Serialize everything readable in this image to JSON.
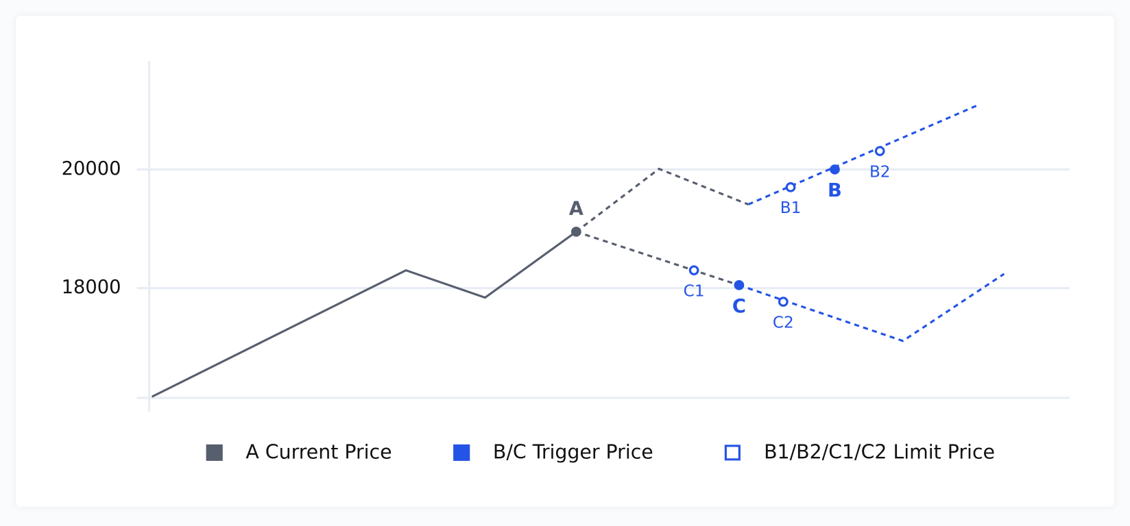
{
  "chart_data": {
    "type": "line",
    "xlim": [
      0,
      100
    ],
    "ylim": [
      16150,
      21830
    ],
    "yticks": [
      18000,
      20000
    ],
    "grid": true,
    "lines": [
      {
        "color": "#575e6e",
        "dashed": false,
        "x": [
          0.3,
          27.9,
          36.5,
          46.4
        ],
        "y": [
          16170,
          18300,
          17840,
          18950
        ]
      },
      {
        "color": "#575e6e",
        "dashed": true,
        "x": [
          46.4,
          55.4,
          65.1
        ],
        "y": [
          18950,
          20010,
          19410
        ]
      },
      {
        "color": "#2454e6",
        "dashed": true,
        "x": [
          65.1,
          90.3
        ],
        "y": [
          19410,
          21100
        ]
      },
      {
        "color": "#575e6e",
        "dashed": true,
        "x": [
          46.4,
          64.1
        ],
        "y": [
          18950,
          18050
        ]
      },
      {
        "color": "#2454e6",
        "dashed": true,
        "x": [
          64.1,
          81.9,
          92.9
        ],
        "y": [
          18050,
          17110,
          18240
        ]
      }
    ],
    "markers": [
      {
        "name": "A Current Price",
        "color": "#575e6e",
        "filled": true,
        "points": [
          {
            "label": "A",
            "x": 46.4,
            "y": 18950,
            "above": true
          }
        ]
      },
      {
        "name": "B/C Trigger Price",
        "color": "#2454e6",
        "filled": true,
        "points": [
          {
            "label": "B",
            "x": 74.5,
            "y": 20000,
            "above": false
          },
          {
            "label": "C",
            "x": 64.1,
            "y": 18050,
            "above": false
          }
        ]
      },
      {
        "name": "B1/B2/C1/C2 Limit Price",
        "color": "#2454e6",
        "filled": false,
        "points": [
          {
            "label": "B1",
            "x": 69.7,
            "y": 19700,
            "above": false
          },
          {
            "label": "B2",
            "x": 79.4,
            "y": 20310,
            "above": false
          },
          {
            "label": "C1",
            "x": 59.2,
            "y": 18300,
            "above": false
          },
          {
            "label": "C2",
            "x": 68.9,
            "y": 17770,
            "above": false
          }
        ]
      }
    ]
  }
}
